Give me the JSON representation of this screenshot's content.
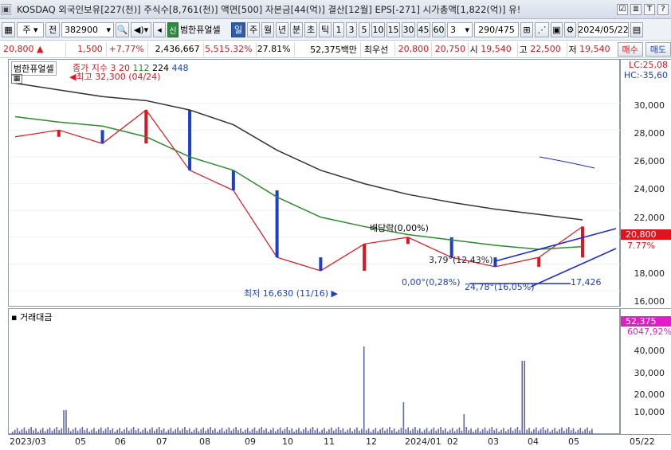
{
  "title_bar": {
    "text": "KOSDAQ 외국인보유[227(천)] 주식수[8,761(천)] 액면[500] 자본금[44(억)] 결산[12월] EPS[-271] 시가총액[1,822(억)] 유!",
    "buttons": [
      "☑",
      "≣",
      "T",
      "?"
    ]
  },
  "toolbar": {
    "market": "주",
    "kind": "전",
    "code": "382900",
    "stock_name": "범한퓨얼셀",
    "periods": [
      "일",
      "주",
      "월",
      "년",
      "분",
      "초",
      "틱"
    ],
    "active_period": "일",
    "minutes": [
      "1",
      "3",
      "5",
      "10",
      "15",
      "30",
      "45",
      "60"
    ],
    "count_select": "3",
    "range": "290/475",
    "date": "2024/05/22"
  },
  "quote": {
    "price": "20,800",
    "arrow": "▲",
    "change": "1,500",
    "change_pct": "+7.77%",
    "volume": "2,436,667",
    "vol_pct": "5,515.32%",
    "turnover": "27.81%",
    "amount": "52,375백만",
    "preferred": "최우선",
    "bid1": "20,800",
    "bid2": "20,750",
    "open_label": "시",
    "open": "19,540",
    "high_label": "고",
    "high": "22,500",
    "low_label": "저",
    "low": "19,540",
    "buy": "매수",
    "sell": "매도"
  },
  "price_pane": {
    "name": "범한퓨얼셀",
    "legend_prefix": "종가 지수",
    "ma": [
      "3",
      "20",
      "112",
      "224",
      "448"
    ],
    "lc": "LC:25,08",
    "hc": "HC:-35,60",
    "cur_price": "20,800",
    "cur_pct": "7.77%",
    "ticks": [
      "30,000",
      "28,000",
      "26,000",
      "24,000",
      "22,000",
      "18,000",
      "16,000"
    ],
    "ann": {
      "high": "최고 32,300 (04/24)",
      "low": "최저 16,630 (11/16)",
      "dividend": "배당락(0,00%)",
      "a1": "0,00°(0,28%)",
      "a2": "24,78°(16,05%)",
      "a3": "17,426",
      "a4": "3,79°(12,43%)"
    }
  },
  "vol_pane": {
    "name": "거래대금",
    "cur": "52,375",
    "cur_pct": "6047,92%",
    "ticks": [
      "40,000",
      "30,000",
      "20,000",
      "10,000"
    ]
  },
  "x_axis": [
    "2023/03",
    "05",
    "06",
    "07",
    "08",
    "09",
    "10",
    "11",
    "12",
    "2024/01",
    "02",
    "03",
    "04",
    "05",
    "05/22"
  ],
  "colors": {
    "up": "#e0141e",
    "down": "#1c3fc4",
    "ma112": "#2b8c2b",
    "ma224": "#333333",
    "ma20": "#e0141e",
    "accent": "#2f5ba8"
  },
  "chart_data": {
    "type": "line",
    "title": "범한퓨얼셀",
    "ylim": [
      15000,
      32300
    ],
    "x": [
      "2023/03",
      "05",
      "06",
      "07",
      "08",
      "09",
      "10",
      "11",
      "12",
      "2024/01",
      "02",
      "03",
      "04",
      "05"
    ],
    "series": [
      {
        "name": "종가",
        "values": [
          27500,
          28000,
          27000,
          29500,
          25000,
          23500,
          18500,
          17500,
          19500,
          20000,
          18500,
          17800,
          18500,
          20800
        ]
      },
      {
        "name": "112",
        "values": [
          29000,
          28600,
          28300,
          27500,
          26000,
          25000,
          23000,
          21500,
          20800,
          20200,
          19800,
          19400,
          19100,
          19300
        ]
      },
      {
        "name": "224",
        "values": [
          31500,
          31000,
          30500,
          30200,
          29500,
          28400,
          26500,
          25000,
          24000,
          23200,
          22600,
          22100,
          21700,
          21300
        ]
      }
    ]
  }
}
